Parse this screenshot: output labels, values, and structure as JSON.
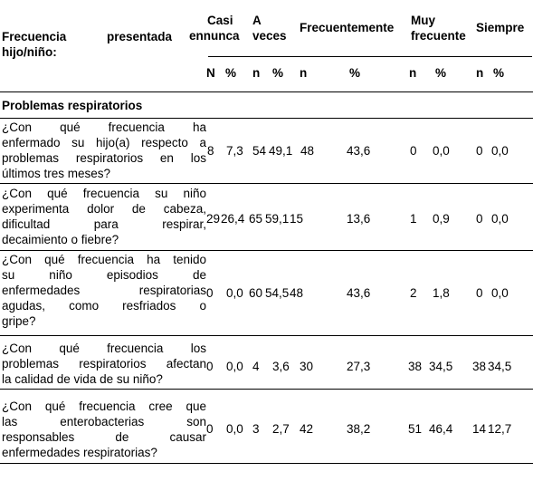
{
  "header": {
    "row_label_line1": "Frecuencia presentada",
    "row_label_line2": "hijo/niño:",
    "groups": [
      {
        "line1": "Casi",
        "line2": "ennunca"
      },
      {
        "line1": "A",
        "line2": "veces"
      },
      {
        "line1": "Frecuentemente",
        "line2": ""
      },
      {
        "line1": "Muy",
        "line2": "frecuente"
      },
      {
        "line1": "Siempre",
        "line2": ""
      }
    ],
    "subcols": [
      "N",
      "%",
      "n",
      "%",
      "n",
      "%",
      "n",
      "%",
      "n",
      "%"
    ]
  },
  "section": "Problemas respiratorios",
  "rows": [
    {
      "question": [
        "¿Con qué frecuencia ha",
        "enfermado su hijo(a) respecto a",
        "problemas respiratorios en los",
        "últimos tres meses?"
      ],
      "values": [
        "8",
        "7,3",
        "54",
        "49,1",
        "48",
        "43,6",
        "0",
        "0,0",
        "0",
        "0,0"
      ]
    },
    {
      "question": [
        "¿Con qué frecuencia su niño",
        "experimenta dolor de cabeza,",
        "dificultad para respirar,",
        "decaimiento o fiebre?"
      ],
      "values": [
        "29",
        "26,4",
        "65",
        "59,1",
        "15",
        "13,6",
        "1",
        "0,9",
        "0",
        "0,0"
      ]
    },
    {
      "question": [
        "¿Con qué frecuencia ha tenido",
        "su niño episodios de",
        "enfermedades respiratorias",
        "agudas, como resfriados o",
        "gripe?"
      ],
      "values": [
        "0",
        "0,0",
        "60",
        "54,5",
        "48",
        "43,6",
        "2",
        "1,8",
        "0",
        "0,0"
      ]
    },
    {
      "question": [
        "¿Con qué frecuencia los",
        "problemas respiratorios afectan",
        "la calidad de vida de su niño?"
      ],
      "values": [
        "0",
        "0,0",
        "4",
        "3,6",
        "30",
        "27,3",
        "38",
        "34,5",
        "38",
        "34,5"
      ]
    },
    {
      "question": [
        "¿Con qué frecuencia cree que",
        "las enterobacterias son",
        "responsables de causar",
        "enfermedades respiratorias?"
      ],
      "values": [
        "0",
        "0,0",
        "3",
        "2,7",
        "42",
        "38,2",
        "51",
        "46,4",
        "14",
        "12,7"
      ]
    }
  ]
}
